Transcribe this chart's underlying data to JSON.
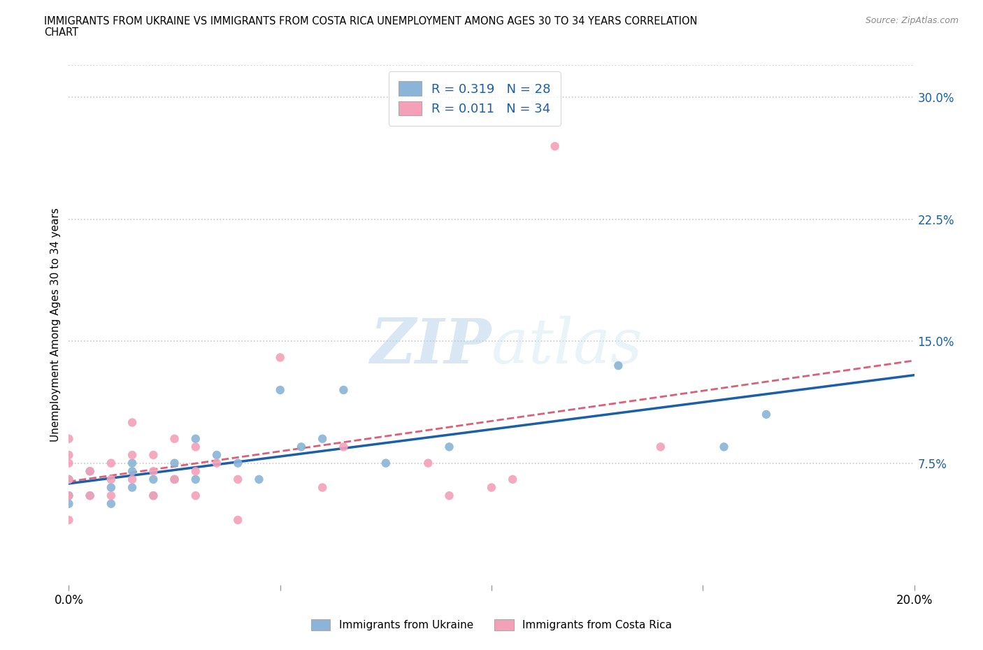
{
  "title_line1": "IMMIGRANTS FROM UKRAINE VS IMMIGRANTS FROM COSTA RICA UNEMPLOYMENT AMONG AGES 30 TO 34 YEARS CORRELATION",
  "title_line2": "CHART",
  "source": "Source: ZipAtlas.com",
  "ylabel": "Unemployment Among Ages 30 to 34 years",
  "xlim": [
    0.0,
    0.2
  ],
  "ylim": [
    0.0,
    0.32
  ],
  "xticks": [
    0.0,
    0.05,
    0.1,
    0.15,
    0.2
  ],
  "xtick_labels": [
    "0.0%",
    "",
    "",
    "",
    "20.0%"
  ],
  "ytick_labels_right": [
    "7.5%",
    "15.0%",
    "22.5%",
    "30.0%"
  ],
  "yticks_right": [
    0.075,
    0.15,
    0.225,
    0.3
  ],
  "ukraine_color": "#8ab4d8",
  "costarica_color": "#f4a0b8",
  "trendline_ukraine_color": "#1a5fa8",
  "trendline_costarica_color": "#d9607a",
  "R_ukraine": 0.319,
  "N_ukraine": 28,
  "R_costarica": 0.011,
  "N_costarica": 34,
  "ukraine_x": [
    0.0,
    0.0,
    0.0,
    0.005,
    0.005,
    0.01,
    0.01,
    0.015,
    0.015,
    0.015,
    0.02,
    0.02,
    0.025,
    0.025,
    0.03,
    0.03,
    0.035,
    0.04,
    0.045,
    0.05,
    0.055,
    0.06,
    0.065,
    0.075,
    0.09,
    0.13,
    0.155,
    0.165
  ],
  "ukraine_y": [
    0.05,
    0.055,
    0.065,
    0.055,
    0.07,
    0.05,
    0.06,
    0.06,
    0.07,
    0.075,
    0.055,
    0.065,
    0.065,
    0.075,
    0.065,
    0.09,
    0.08,
    0.075,
    0.065,
    0.12,
    0.085,
    0.09,
    0.12,
    0.075,
    0.085,
    0.135,
    0.085,
    0.105
  ],
  "costarica_x": [
    0.0,
    0.0,
    0.0,
    0.0,
    0.0,
    0.0,
    0.005,
    0.005,
    0.01,
    0.01,
    0.01,
    0.015,
    0.015,
    0.015,
    0.02,
    0.02,
    0.02,
    0.025,
    0.025,
    0.03,
    0.03,
    0.03,
    0.035,
    0.04,
    0.04,
    0.05,
    0.06,
    0.065,
    0.085,
    0.09,
    0.1,
    0.105,
    0.115,
    0.14
  ],
  "costarica_y": [
    0.04,
    0.055,
    0.065,
    0.075,
    0.08,
    0.09,
    0.055,
    0.07,
    0.055,
    0.065,
    0.075,
    0.065,
    0.08,
    0.1,
    0.055,
    0.07,
    0.08,
    0.065,
    0.09,
    0.055,
    0.07,
    0.085,
    0.075,
    0.04,
    0.065,
    0.14,
    0.06,
    0.085,
    0.075,
    0.055,
    0.06,
    0.065,
    0.27,
    0.085
  ],
  "watermark_zip": "ZIP",
  "watermark_atlas": "atlas",
  "background_color": "#ffffff",
  "grid_color": "#c8c8c8",
  "legend_text_color": "#1a5fa8"
}
